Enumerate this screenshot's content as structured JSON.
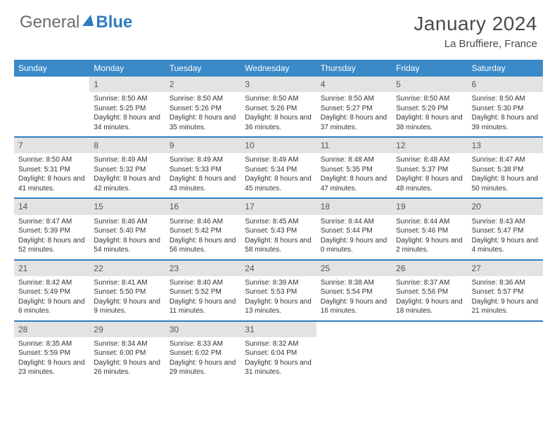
{
  "logo": {
    "part1": "General",
    "part2": "Blue"
  },
  "month_title": "January 2024",
  "location": "La Bruffiere, France",
  "colors": {
    "header_bg": "#3b89c7",
    "header_text": "#ffffff",
    "daynum_bg": "#e3e3e3",
    "week_divider": "#2f7bc0",
    "body_text": "#333333",
    "title_text": "#4a4a4a"
  },
  "weekdays": [
    "Sunday",
    "Monday",
    "Tuesday",
    "Wednesday",
    "Thursday",
    "Friday",
    "Saturday"
  ],
  "weeks": [
    [
      {
        "n": "",
        "sr": "",
        "ss": "",
        "dl": ""
      },
      {
        "n": "1",
        "sr": "Sunrise: 8:50 AM",
        "ss": "Sunset: 5:25 PM",
        "dl": "Daylight: 8 hours and 34 minutes."
      },
      {
        "n": "2",
        "sr": "Sunrise: 8:50 AM",
        "ss": "Sunset: 5:26 PM",
        "dl": "Daylight: 8 hours and 35 minutes."
      },
      {
        "n": "3",
        "sr": "Sunrise: 8:50 AM",
        "ss": "Sunset: 5:26 PM",
        "dl": "Daylight: 8 hours and 36 minutes."
      },
      {
        "n": "4",
        "sr": "Sunrise: 8:50 AM",
        "ss": "Sunset: 5:27 PM",
        "dl": "Daylight: 8 hours and 37 minutes."
      },
      {
        "n": "5",
        "sr": "Sunrise: 8:50 AM",
        "ss": "Sunset: 5:29 PM",
        "dl": "Daylight: 8 hours and 38 minutes."
      },
      {
        "n": "6",
        "sr": "Sunrise: 8:50 AM",
        "ss": "Sunset: 5:30 PM",
        "dl": "Daylight: 8 hours and 39 minutes."
      }
    ],
    [
      {
        "n": "7",
        "sr": "Sunrise: 8:50 AM",
        "ss": "Sunset: 5:31 PM",
        "dl": "Daylight: 8 hours and 41 minutes."
      },
      {
        "n": "8",
        "sr": "Sunrise: 8:49 AM",
        "ss": "Sunset: 5:32 PM",
        "dl": "Daylight: 8 hours and 42 minutes."
      },
      {
        "n": "9",
        "sr": "Sunrise: 8:49 AM",
        "ss": "Sunset: 5:33 PM",
        "dl": "Daylight: 8 hours and 43 minutes."
      },
      {
        "n": "10",
        "sr": "Sunrise: 8:49 AM",
        "ss": "Sunset: 5:34 PM",
        "dl": "Daylight: 8 hours and 45 minutes."
      },
      {
        "n": "11",
        "sr": "Sunrise: 8:48 AM",
        "ss": "Sunset: 5:35 PM",
        "dl": "Daylight: 8 hours and 47 minutes."
      },
      {
        "n": "12",
        "sr": "Sunrise: 8:48 AM",
        "ss": "Sunset: 5:37 PM",
        "dl": "Daylight: 8 hours and 48 minutes."
      },
      {
        "n": "13",
        "sr": "Sunrise: 8:47 AM",
        "ss": "Sunset: 5:38 PM",
        "dl": "Daylight: 8 hours and 50 minutes."
      }
    ],
    [
      {
        "n": "14",
        "sr": "Sunrise: 8:47 AM",
        "ss": "Sunset: 5:39 PM",
        "dl": "Daylight: 8 hours and 52 minutes."
      },
      {
        "n": "15",
        "sr": "Sunrise: 8:46 AM",
        "ss": "Sunset: 5:40 PM",
        "dl": "Daylight: 8 hours and 54 minutes."
      },
      {
        "n": "16",
        "sr": "Sunrise: 8:46 AM",
        "ss": "Sunset: 5:42 PM",
        "dl": "Daylight: 8 hours and 56 minutes."
      },
      {
        "n": "17",
        "sr": "Sunrise: 8:45 AM",
        "ss": "Sunset: 5:43 PM",
        "dl": "Daylight: 8 hours and 58 minutes."
      },
      {
        "n": "18",
        "sr": "Sunrise: 8:44 AM",
        "ss": "Sunset: 5:44 PM",
        "dl": "Daylight: 9 hours and 0 minutes."
      },
      {
        "n": "19",
        "sr": "Sunrise: 8:44 AM",
        "ss": "Sunset: 5:46 PM",
        "dl": "Daylight: 9 hours and 2 minutes."
      },
      {
        "n": "20",
        "sr": "Sunrise: 8:43 AM",
        "ss": "Sunset: 5:47 PM",
        "dl": "Daylight: 9 hours and 4 minutes."
      }
    ],
    [
      {
        "n": "21",
        "sr": "Sunrise: 8:42 AM",
        "ss": "Sunset: 5:49 PM",
        "dl": "Daylight: 9 hours and 6 minutes."
      },
      {
        "n": "22",
        "sr": "Sunrise: 8:41 AM",
        "ss": "Sunset: 5:50 PM",
        "dl": "Daylight: 9 hours and 9 minutes."
      },
      {
        "n": "23",
        "sr": "Sunrise: 8:40 AM",
        "ss": "Sunset: 5:52 PM",
        "dl": "Daylight: 9 hours and 11 minutes."
      },
      {
        "n": "24",
        "sr": "Sunrise: 8:39 AM",
        "ss": "Sunset: 5:53 PM",
        "dl": "Daylight: 9 hours and 13 minutes."
      },
      {
        "n": "25",
        "sr": "Sunrise: 8:38 AM",
        "ss": "Sunset: 5:54 PM",
        "dl": "Daylight: 9 hours and 16 minutes."
      },
      {
        "n": "26",
        "sr": "Sunrise: 8:37 AM",
        "ss": "Sunset: 5:56 PM",
        "dl": "Daylight: 9 hours and 18 minutes."
      },
      {
        "n": "27",
        "sr": "Sunrise: 8:36 AM",
        "ss": "Sunset: 5:57 PM",
        "dl": "Daylight: 9 hours and 21 minutes."
      }
    ],
    [
      {
        "n": "28",
        "sr": "Sunrise: 8:35 AM",
        "ss": "Sunset: 5:59 PM",
        "dl": "Daylight: 9 hours and 23 minutes."
      },
      {
        "n": "29",
        "sr": "Sunrise: 8:34 AM",
        "ss": "Sunset: 6:00 PM",
        "dl": "Daylight: 9 hours and 26 minutes."
      },
      {
        "n": "30",
        "sr": "Sunrise: 8:33 AM",
        "ss": "Sunset: 6:02 PM",
        "dl": "Daylight: 9 hours and 29 minutes."
      },
      {
        "n": "31",
        "sr": "Sunrise: 8:32 AM",
        "ss": "Sunset: 6:04 PM",
        "dl": "Daylight: 9 hours and 31 minutes."
      },
      {
        "n": "",
        "sr": "",
        "ss": "",
        "dl": ""
      },
      {
        "n": "",
        "sr": "",
        "ss": "",
        "dl": ""
      },
      {
        "n": "",
        "sr": "",
        "ss": "",
        "dl": ""
      }
    ]
  ]
}
